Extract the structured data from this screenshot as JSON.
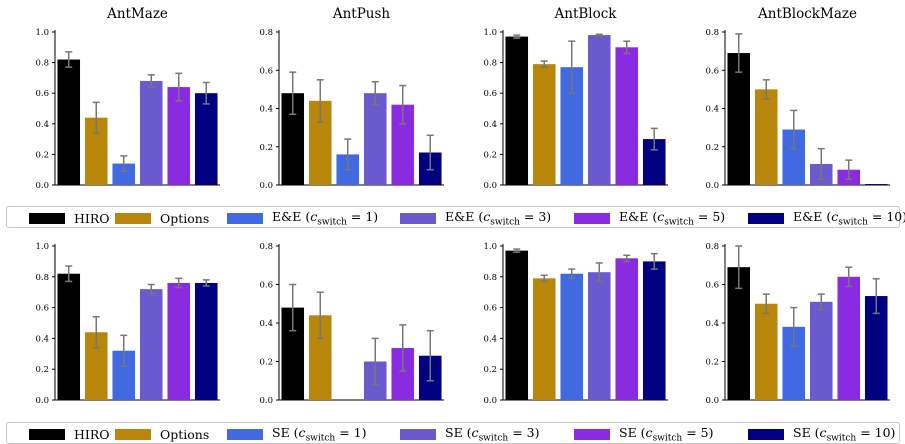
{
  "colors": {
    "hiro": "#000000",
    "options": "#b8860b",
    "c1": "#4169e1",
    "c3": "#6a5acd",
    "c5": "#8a2be2",
    "c10": "#000080",
    "error": "#777777",
    "axis": "#000000"
  },
  "legends": [
    {
      "entries": [
        {
          "label": "HIRO",
          "color": "#000000"
        },
        {
          "label": "Options",
          "color": "#b8860b"
        },
        {
          "label": "E&E (c_switch = 1)",
          "color": "#4169e1"
        },
        {
          "label": "E&E (c_switch = 3)",
          "color": "#6a5acd"
        },
        {
          "label": "E&E (c_switch = 5)",
          "color": "#8a2be2"
        },
        {
          "label": "E&E (c_switch = 10)",
          "color": "#000080"
        }
      ]
    },
    {
      "entries": [
        {
          "label": "HIRO",
          "color": "#000000"
        },
        {
          "label": "Options",
          "color": "#b8860b"
        },
        {
          "label": "SE (c_switch = 1)",
          "color": "#4169e1"
        },
        {
          "label": "SE (c_switch = 3)",
          "color": "#6a5acd"
        },
        {
          "label": "SE (c_switch = 5)",
          "color": "#8a2be2"
        },
        {
          "label": "SE (c_switch = 10)",
          "color": "#000080"
        }
      ]
    }
  ],
  "chart_data": [
    {
      "type": "bar",
      "row": 0,
      "title": "AntMaze",
      "ylim": [
        0,
        1.0
      ],
      "yticks": [
        "0.0",
        "0.2",
        "0.4",
        "0.6",
        "0.8",
        "1.0"
      ],
      "values": [
        0.82,
        0.44,
        0.14,
        0.68,
        0.64,
        0.6
      ],
      "errors": [
        0.05,
        0.1,
        0.05,
        0.04,
        0.09,
        0.07
      ]
    },
    {
      "type": "bar",
      "row": 0,
      "title": "AntPush",
      "ylim": [
        0,
        0.8
      ],
      "yticks": [
        "0.0",
        "0.2",
        "0.4",
        "0.6",
        "0.8"
      ],
      "values": [
        0.48,
        0.44,
        0.16,
        0.48,
        0.42,
        0.17
      ],
      "errors": [
        0.11,
        0.11,
        0.08,
        0.06,
        0.1,
        0.09
      ]
    },
    {
      "type": "bar",
      "row": 0,
      "title": "AntBlock",
      "ylim": [
        0,
        1.0
      ],
      "yticks": [
        "0.0",
        "0.2",
        "0.4",
        "0.6",
        "0.8",
        "1.0"
      ],
      "values": [
        0.97,
        0.79,
        0.77,
        0.98,
        0.9,
        0.3
      ],
      "errors": [
        0.01,
        0.02,
        0.17,
        0.005,
        0.04,
        0.07
      ]
    },
    {
      "type": "bar",
      "row": 0,
      "title": "AntBlockMaze",
      "ylim": [
        0,
        0.8
      ],
      "yticks": [
        "0.0",
        "0.2",
        "0.4",
        "0.6",
        "0.8"
      ],
      "values": [
        0.69,
        0.5,
        0.29,
        0.11,
        0.08,
        0.005
      ],
      "errors": [
        0.1,
        0.05,
        0.1,
        0.08,
        0.05,
        0.0
      ]
    },
    {
      "type": "bar",
      "row": 1,
      "title": "",
      "ylim": [
        0,
        1.0
      ],
      "yticks": [
        "0.0",
        "0.2",
        "0.4",
        "0.6",
        "0.8",
        "1.0"
      ],
      "values": [
        0.82,
        0.44,
        0.32,
        0.72,
        0.76,
        0.76
      ],
      "errors": [
        0.05,
        0.1,
        0.1,
        0.03,
        0.03,
        0.02
      ]
    },
    {
      "type": "bar",
      "row": 1,
      "title": "",
      "ylim": [
        0,
        0.8
      ],
      "yticks": [
        "0.0",
        "0.2",
        "0.4",
        "0.6",
        "0.8"
      ],
      "values": [
        0.48,
        0.44,
        0.0,
        0.2,
        0.27,
        0.23
      ],
      "errors": [
        0.12,
        0.12,
        0.0,
        0.12,
        0.12,
        0.13
      ]
    },
    {
      "type": "bar",
      "row": 1,
      "title": "",
      "ylim": [
        0,
        1.0
      ],
      "yticks": [
        "0.0",
        "0.2",
        "0.4",
        "0.6",
        "0.8",
        "1.0"
      ],
      "values": [
        0.97,
        0.79,
        0.82,
        0.83,
        0.92,
        0.9
      ],
      "errors": [
        0.01,
        0.02,
        0.03,
        0.06,
        0.02,
        0.05
      ]
    },
    {
      "type": "bar",
      "row": 1,
      "title": "",
      "ylim": [
        0,
        0.8
      ],
      "yticks": [
        "0.0",
        "0.2",
        "0.4",
        "0.6",
        "0.8"
      ],
      "values": [
        0.69,
        0.5,
        0.38,
        0.51,
        0.64,
        0.54
      ],
      "errors": [
        0.11,
        0.05,
        0.1,
        0.04,
        0.05,
        0.09
      ]
    }
  ]
}
